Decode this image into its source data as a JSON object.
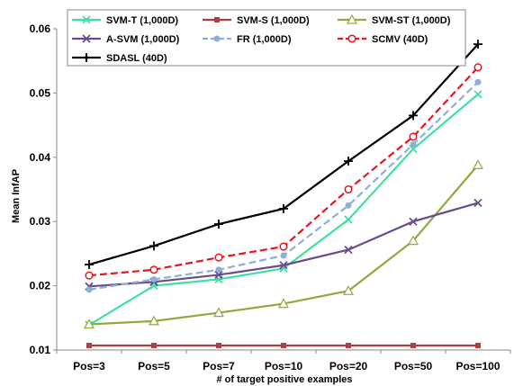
{
  "chart_data": {
    "type": "line",
    "xlabel": "# of target positive examples",
    "ylabel": "Mean InfAP",
    "categories": [
      "Pos=3",
      "Pos=5",
      "Pos=7",
      "Pos=10",
      "Pos=20",
      "Pos=50",
      "Pos=100"
    ],
    "ylim": [
      0.01,
      0.06
    ],
    "yticks": [
      "0.01",
      "0.02",
      "0.03",
      "0.04",
      "0.05",
      "0.06"
    ],
    "grid": false,
    "legend_position": "top",
    "series": [
      {
        "name": "SVM-T (1,000D)",
        "color": "#40e0a0",
        "marker": "x",
        "dash": "solid",
        "values": [
          0.0139,
          0.02,
          0.021,
          0.0227,
          0.0303,
          0.0413,
          0.0498
        ]
      },
      {
        "name": "SVM-S (1,000D)",
        "color": "#b04040",
        "marker": "square",
        "dash": "solid",
        "values": [
          0.0107,
          0.0107,
          0.0107,
          0.0107,
          0.0107,
          0.0107,
          0.0107
        ]
      },
      {
        "name": "SVM-ST (1,000D)",
        "color": "#8faa3c",
        "marker": "triangle",
        "dash": "solid",
        "values": [
          0.014,
          0.0145,
          0.0158,
          0.0172,
          0.0192,
          0.027,
          0.0388
        ]
      },
      {
        "name": "A-SVM (1,000D)",
        "color": "#6a4c8c",
        "marker": "x",
        "dash": "solid",
        "values": [
          0.0199,
          0.0206,
          0.0217,
          0.0232,
          0.0256,
          0.03,
          0.0329
        ]
      },
      {
        "name": "FR (1,000D)",
        "color": "#8faed8",
        "marker": "circle-filled",
        "dash": "dashed",
        "values": [
          0.0194,
          0.021,
          0.0225,
          0.0247,
          0.0325,
          0.042,
          0.0517
        ]
      },
      {
        "name": "SCMV (40D)",
        "color": "#e8141e",
        "marker": "circle-open",
        "dash": "dashed",
        "values": [
          0.0216,
          0.0225,
          0.0244,
          0.0261,
          0.035,
          0.0432,
          0.054
        ]
      },
      {
        "name": "SDASL (40D)",
        "color": "#000000",
        "marker": "plus",
        "dash": "solid",
        "values": [
          0.0233,
          0.0262,
          0.0296,
          0.032,
          0.0394,
          0.0465,
          0.0576
        ]
      }
    ]
  }
}
